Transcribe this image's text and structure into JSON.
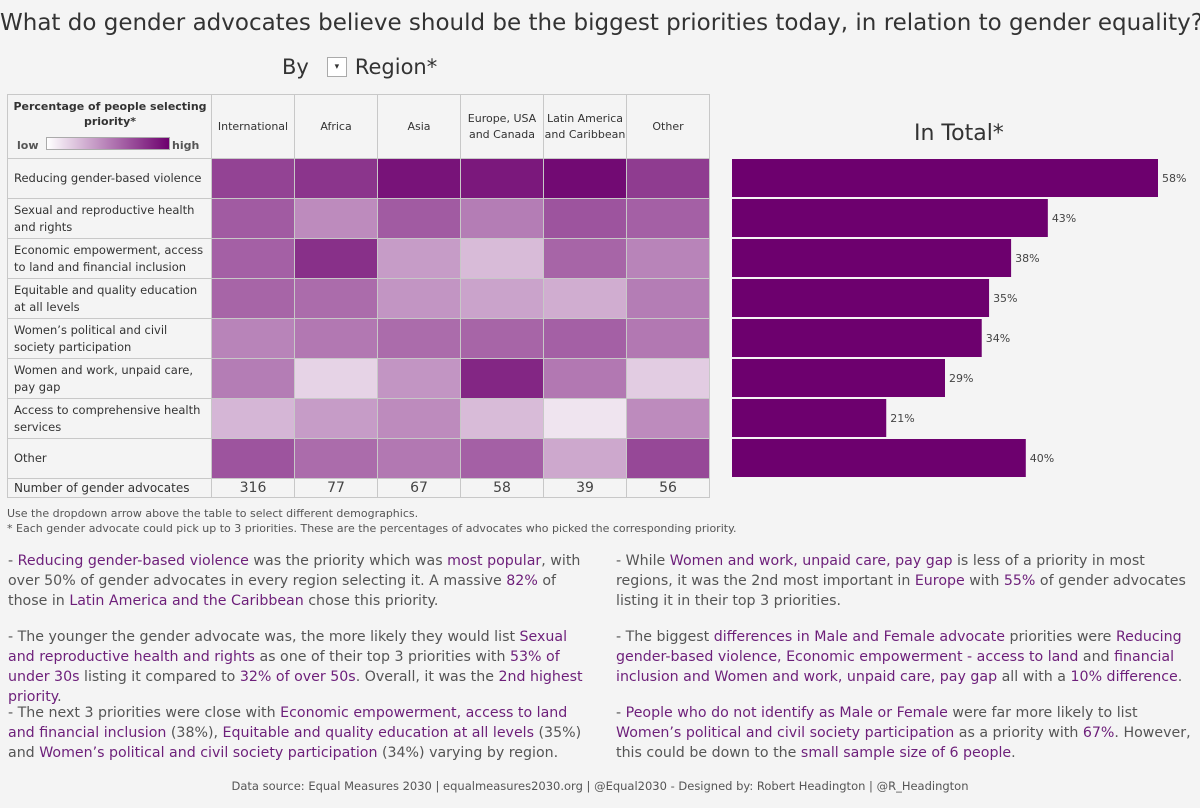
{
  "title": "What do gender advocates believe should be the biggest priorities today, in relation to gender equality?",
  "by_label": "By",
  "dropdown_value": "Region*",
  "legend": {
    "title": "Percentage of people selecting priority*",
    "low": "low",
    "high": "high",
    "color_low": "#ffffff",
    "color_high": "#6d006e"
  },
  "heatmap": {
    "columns": [
      "International",
      "Africa",
      "Asia",
      "Europe, USA and Canada",
      "Latin America and Caribbean",
      "Other"
    ],
    "rows": [
      "Reducing gender-based violence",
      "Sexual and reproductive health and rights",
      "Economic empowerment, access to land and financial inclusion",
      "Equitable and quality education at all levels",
      "Women’s political and civil society participation",
      "Women and work, unpaid care, pay gap",
      "Access to comprehensive health services",
      "Other"
    ],
    "count_label": "Number of gender advocates",
    "counts": [
      "316",
      "77",
      "67",
      "58",
      "39",
      "56"
    ]
  },
  "chart_data": [
    {
      "type": "heatmap",
      "x": [
        "International",
        "Africa",
        "Asia",
        "Europe, USA and Canada",
        "Latin America and Caribbean",
        "Other"
      ],
      "y": [
        "Reducing gender-based violence",
        "Sexual and reproductive health and rights",
        "Economic empowerment, access to land and financial inclusion",
        "Equitable and quality education at all levels",
        "Women’s political and civil society participation",
        "Women and work, unpaid care, pay gap",
        "Access to comprehensive health services",
        "Other"
      ],
      "values": [
        [
          0.72,
          0.78,
          0.92,
          0.9,
          0.96,
          0.75
        ],
        [
          0.62,
          0.42,
          0.62,
          0.48,
          0.65,
          0.6
        ],
        [
          0.6,
          0.8,
          0.35,
          0.22,
          0.58,
          0.45
        ],
        [
          0.58,
          0.55,
          0.38,
          0.32,
          0.28,
          0.48
        ],
        [
          0.45,
          0.5,
          0.55,
          0.58,
          0.6,
          0.5
        ],
        [
          0.48,
          0.12,
          0.38,
          0.84,
          0.5,
          0.15
        ],
        [
          0.24,
          0.35,
          0.42,
          0.22,
          0.05,
          0.42
        ],
        [
          0.65,
          0.55,
          0.5,
          0.6,
          0.3,
          0.7
        ]
      ]
    },
    {
      "type": "bar",
      "title": "In Total*",
      "categories": [
        "Reducing gender-based violence",
        "Sexual and reproductive health and rights",
        "Economic empowerment, access to land and financial inclusion",
        "Equitable and quality education at all levels",
        "Women’s political and civil society participation",
        "Women and work, unpaid care, pay gap",
        "Access to comprehensive health services",
        "Other"
      ],
      "values": [
        58,
        43,
        38,
        35,
        34,
        29,
        21,
        40
      ],
      "labels": [
        "58%",
        "43%",
        "38%",
        "35%",
        "34%",
        "29%",
        "21%",
        "40%"
      ],
      "xlim": [
        0,
        58
      ],
      "color": "#6d006e"
    }
  ],
  "notes": [
    "Use the dropdown arrow above the table to select different demographics.",
    "* Each gender advocate could pick up to 3 priorities. These are the percentages of advocates who picked the corresponding priority."
  ],
  "paragraphs": {
    "left": [
      [
        {
          "t": "- "
        },
        {
          "t": "Reducing gender-based violence",
          "h": true
        },
        {
          "t": " was the priority which was "
        },
        {
          "t": "most popular",
          "h": true
        },
        {
          "t": ", with over 50% of gender advocates in every region selecting it. A massive "
        },
        {
          "t": "82%",
          "h": true
        },
        {
          "t": " of those in "
        },
        {
          "t": "Latin America and the Caribbean",
          "h": true
        },
        {
          "t": " chose this priority."
        }
      ],
      [
        {
          "t": "- The younger the gender advocate was, the more likely they would list "
        },
        {
          "t": "Sexual and reproductive health and rights",
          "h": true
        },
        {
          "t": " as one of their top 3 priorities with "
        },
        {
          "t": "53% of under 30s",
          "h": true
        },
        {
          "t": " listing it compared to "
        },
        {
          "t": "32% of over 50s",
          "h": true
        },
        {
          "t": ". Overall, it was the "
        },
        {
          "t": "2nd highest priority",
          "h": true
        },
        {
          "t": "."
        }
      ],
      [
        {
          "t": "- The next 3 priorities were close with "
        },
        {
          "t": "Economic empowerment, access to land and financial inclusion",
          "h": true
        },
        {
          "t": " (38%), "
        },
        {
          "t": "Equitable and quality education at all levels",
          "h": true
        },
        {
          "t": " (35%) and "
        },
        {
          "t": "Women’s political and civil society participation",
          "h": true
        },
        {
          "t": " (34%) varying by region."
        }
      ]
    ],
    "right": [
      [
        {
          "t": "- While "
        },
        {
          "t": "Women and work, unpaid care, pay gap",
          "h": true
        },
        {
          "t": " is less of a priority in most regions, it was the 2nd most important in "
        },
        {
          "t": "Europe",
          "h": true
        },
        {
          "t": " with "
        },
        {
          "t": "55%",
          "h": true
        },
        {
          "t": " of gender advocates listing it in their top 3 priorities."
        }
      ],
      [
        {
          "t": "- The biggest "
        },
        {
          "t": "differences in Male and Female advocate",
          "h": true
        },
        {
          "t": " priorities were "
        },
        {
          "t": "Reducing gender-based violence, Economic empowerment - access to land",
          "h": true
        },
        {
          "t": " and "
        },
        {
          "t": "financial inclusion and Women and work, unpaid care, pay gap",
          "h": true
        },
        {
          "t": " all with a "
        },
        {
          "t": "10% difference",
          "h": true
        },
        {
          "t": "."
        }
      ],
      [
        {
          "t": "- "
        },
        {
          "t": "People who do not identify as Male or Female",
          "h": true
        },
        {
          "t": " were far more likely to list "
        },
        {
          "t": "Women’s political and civil society participation",
          "h": true
        },
        {
          "t": " as a priority with "
        },
        {
          "t": "67%",
          "h": true
        },
        {
          "t": ". However, this could be down to the "
        },
        {
          "t": "small sample size of 6 people",
          "h": true
        },
        {
          "t": "."
        }
      ]
    ]
  },
  "source": "Data source: Equal Measures 2030 | equalmeasures2030.org | @Equal2030 -  Designed by: Robert Headington | @R_Headington"
}
